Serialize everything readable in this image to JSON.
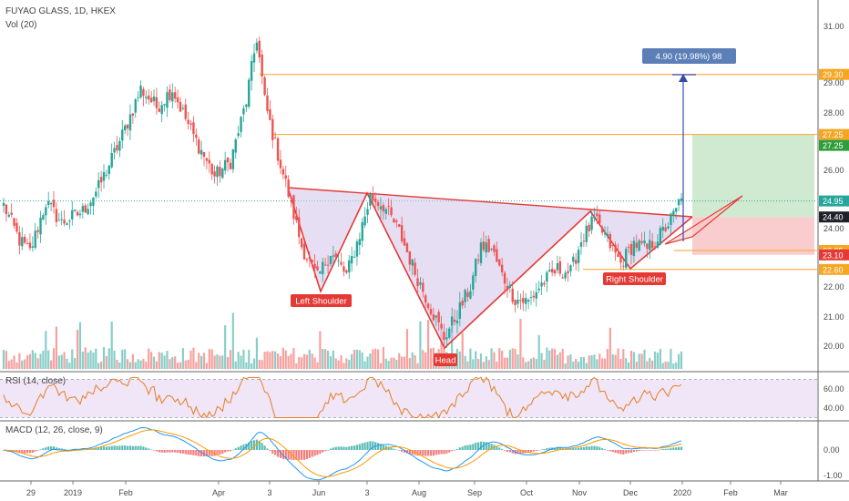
{
  "header": {
    "symbol_title": "FUYAO GLASS, 1D, HKEX",
    "volume_label": "Vol (20)"
  },
  "colors": {
    "up": "#26a69a",
    "down": "#ef5350",
    "pattern_line": "#e53935",
    "pattern_fill": "#d1c4e9",
    "level_line": "#f5a623",
    "measure_line": "#3949ab",
    "measure_label_bg": "#5b7fb6",
    "profit_zone": "#c8e6c9",
    "loss_zone": "#f8c8c8",
    "rsi_line": "#e67e22",
    "rsi_band": "#ede2f7",
    "macd_line": "#2196f3",
    "signal_line": "#ff9800",
    "price_now": "#26a69a",
    "price_tag_dark": "#1e2127"
  },
  "chart_data": [
    {
      "type": "candlestick",
      "panel": "price",
      "x_axis_ticks": [
        "29",
        "2019",
        "Feb",
        "Apr",
        "3",
        "Jun",
        "3",
        "Aug",
        "Sep",
        "Oct",
        "Nov",
        "Dec",
        "2020",
        "Feb",
        "Mar"
      ],
      "y_axis_ticks": [
        31.0,
        29.0,
        28.0,
        26.0,
        24.0,
        22.0,
        21.0,
        20.0
      ],
      "ylim": [
        19.5,
        31.5
      ],
      "price_path_anchors": [
        [
          0,
          24.8
        ],
        [
          6,
          23.6
        ],
        [
          10,
          23.2
        ],
        [
          16,
          24.9
        ],
        [
          22,
          24.2
        ],
        [
          30,
          24.6
        ],
        [
          36,
          25.4
        ],
        [
          44,
          27.0
        ],
        [
          52,
          28.8
        ],
        [
          58,
          28.2
        ],
        [
          64,
          28.8
        ],
        [
          72,
          27.2
        ],
        [
          80,
          25.8
        ],
        [
          86,
          26.3
        ],
        [
          92,
          28.4
        ],
        [
          96,
          30.6
        ],
        [
          99,
          28.4
        ],
        [
          103,
          26.9
        ],
        [
          108,
          25.2
        ],
        [
          113,
          23.4
        ],
        [
          119,
          22.3
        ],
        [
          124,
          23.2
        ],
        [
          130,
          22.4
        ],
        [
          135,
          23.8
        ],
        [
          139,
          25.1
        ],
        [
          144,
          24.8
        ],
        [
          150,
          23.9
        ],
        [
          156,
          22.5
        ],
        [
          162,
          21.3
        ],
        [
          167,
          20.3
        ],
        [
          172,
          21.1
        ],
        [
          177,
          22.0
        ],
        [
          181,
          23.4
        ],
        [
          185,
          23.3
        ],
        [
          189,
          22.4
        ],
        [
          194,
          21.6
        ],
        [
          199,
          21.5
        ],
        [
          204,
          22.1
        ],
        [
          210,
          22.6
        ],
        [
          215,
          22.5
        ],
        [
          219,
          23.6
        ],
        [
          224,
          24.3
        ],
        [
          229,
          23.6
        ],
        [
          234,
          22.8
        ],
        [
          239,
          23.5
        ],
        [
          244,
          23.3
        ],
        [
          250,
          23.9
        ],
        [
          255,
          24.6
        ],
        [
          257,
          25.2
        ]
      ],
      "indicators": {
        "volume": "Vol (20)",
        "rsi": "RSI (14, close)",
        "macd": "MACD (12, 26, close, 9)"
      }
    },
    {
      "type": "line",
      "panel": "rsi",
      "title": "RSI (14, close)",
      "y_axis_ticks": [
        60.0,
        40.0
      ],
      "band": [
        30,
        70
      ],
      "ylim": [
        25,
        80
      ]
    },
    {
      "type": "line",
      "panel": "macd",
      "title": "MACD (12, 26, close, 9)",
      "y_axis_ticks": [
        0.0,
        -1.0
      ],
      "ylim": [
        -1.35,
        0.75
      ]
    }
  ],
  "annotations": {
    "left_shoulder": "Left Shoulder",
    "head": "Head",
    "right_shoulder": "Right Shoulder",
    "measure_label": "4.90 (19.98%) 98"
  },
  "price_tags": {
    "target": "29.30",
    "level_upper": "27.25",
    "level_upper_green": "27.25",
    "entry_line": "24.95",
    "current": "24.40",
    "level_mid": "23.25",
    "stop": "23.10",
    "level_low": "22.60"
  },
  "price_axis_labels": [
    "31.00",
    "29.00",
    "28.00",
    "26.00",
    "24.00",
    "22.00",
    "21.00",
    "20.00"
  ],
  "rsi_axis_labels": [
    "60.00",
    "40.00"
  ],
  "macd_axis_labels": [
    "0.00",
    "-1.00"
  ],
  "time_axis_labels": [
    "29",
    "2019",
    "Feb",
    "Apr",
    "3",
    "Jun",
    "3",
    "Aug",
    "Sep",
    "Oct",
    "Nov",
    "Dec",
    "2020",
    "Feb",
    "Mar"
  ]
}
